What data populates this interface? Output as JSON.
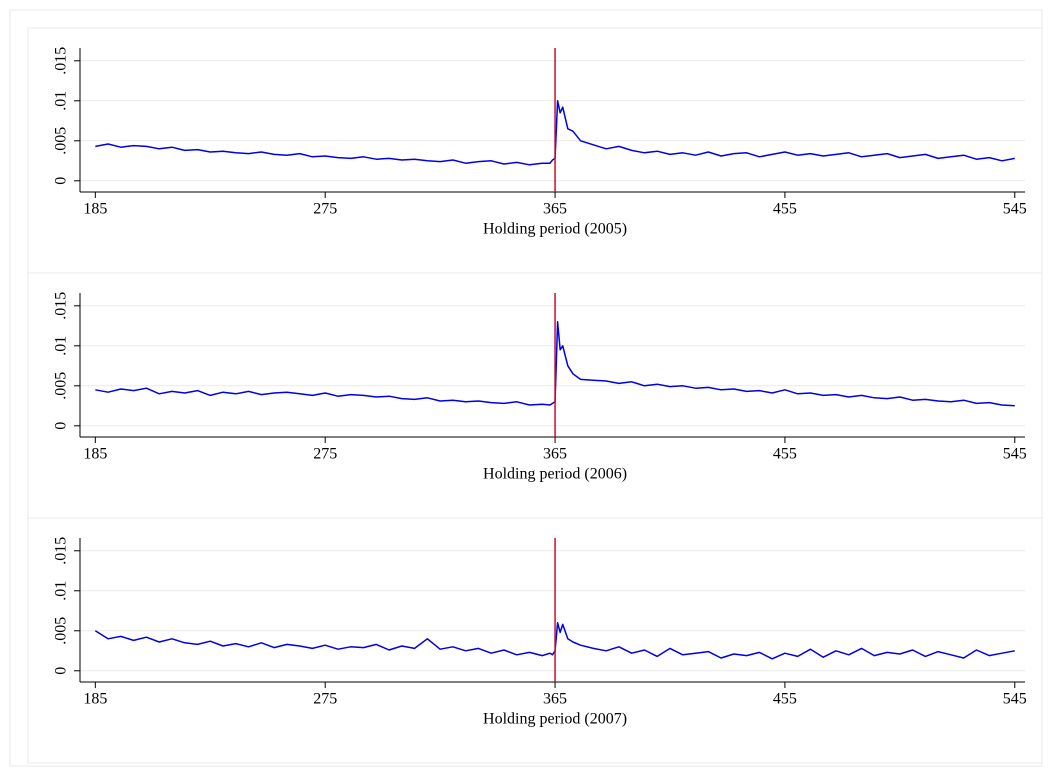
{
  "chart_data": [
    {
      "type": "line",
      "x_label": "Holding period (2005)",
      "color": "#0000e6",
      "vline": 365,
      "vline_color": "#c8102e",
      "grid": true,
      "xlim": [
        179,
        549
      ],
      "xticks": [
        185,
        275,
        365,
        455,
        545
      ],
      "ylim": [
        -0.0014,
        0.0166
      ],
      "yticks": [
        {
          "value": 0,
          "label": "0"
        },
        {
          "value": 0.005,
          "label": ".005"
        },
        {
          "value": 0.01,
          "label": ".01"
        },
        {
          "value": 0.015,
          "label": ".015"
        }
      ],
      "x": [
        185,
        190,
        195,
        200,
        205,
        210,
        215,
        220,
        225,
        230,
        235,
        240,
        245,
        250,
        255,
        260,
        265,
        270,
        275,
        280,
        285,
        290,
        295,
        300,
        305,
        310,
        315,
        320,
        325,
        330,
        335,
        340,
        345,
        350,
        355,
        360,
        363,
        364,
        365,
        366,
        367,
        368,
        370,
        372,
        375,
        380,
        385,
        390,
        395,
        400,
        405,
        410,
        415,
        420,
        425,
        430,
        435,
        440,
        445,
        450,
        455,
        460,
        465,
        470,
        475,
        480,
        485,
        490,
        495,
        500,
        505,
        510,
        515,
        520,
        525,
        530,
        535,
        540,
        545
      ],
      "values": [
        0.0043,
        0.0046,
        0.0042,
        0.0044,
        0.0043,
        0.004,
        0.0042,
        0.0038,
        0.0039,
        0.0036,
        0.0037,
        0.0035,
        0.0034,
        0.0036,
        0.0033,
        0.0032,
        0.0034,
        0.003,
        0.0031,
        0.0029,
        0.0028,
        0.003,
        0.0027,
        0.0028,
        0.0026,
        0.0027,
        0.0025,
        0.0024,
        0.0026,
        0.0022,
        0.0024,
        0.0025,
        0.0021,
        0.0023,
        0.002,
        0.0022,
        0.0022,
        0.0026,
        0.0028,
        0.01,
        0.0085,
        0.0092,
        0.0065,
        0.0062,
        0.005,
        0.0045,
        0.004,
        0.0043,
        0.0038,
        0.0035,
        0.0037,
        0.0033,
        0.0035,
        0.0032,
        0.0036,
        0.0031,
        0.0034,
        0.0035,
        0.003,
        0.0033,
        0.0036,
        0.0032,
        0.0034,
        0.0031,
        0.0033,
        0.0035,
        0.003,
        0.0032,
        0.0034,
        0.0029,
        0.0031,
        0.0033,
        0.0028,
        0.003,
        0.0032,
        0.0027,
        0.0029,
        0.0025,
        0.0028
      ]
    },
    {
      "type": "line",
      "x_label": "Holding period (2006)",
      "color": "#0000e6",
      "vline": 365,
      "vline_color": "#c8102e",
      "grid": true,
      "xlim": [
        179,
        549
      ],
      "xticks": [
        185,
        275,
        365,
        455,
        545
      ],
      "ylim": [
        -0.0014,
        0.0166
      ],
      "yticks": [
        {
          "value": 0,
          "label": "0"
        },
        {
          "value": 0.005,
          "label": ".005"
        },
        {
          "value": 0.01,
          "label": ".01"
        },
        {
          "value": 0.015,
          "label": ".015"
        }
      ],
      "x": [
        185,
        190,
        195,
        200,
        205,
        210,
        215,
        220,
        225,
        230,
        235,
        240,
        245,
        250,
        255,
        260,
        265,
        270,
        275,
        280,
        285,
        290,
        295,
        300,
        305,
        310,
        315,
        320,
        325,
        330,
        335,
        340,
        345,
        350,
        355,
        360,
        363,
        364,
        365,
        366,
        367,
        368,
        370,
        372,
        375,
        380,
        385,
        390,
        395,
        400,
        405,
        410,
        415,
        420,
        425,
        430,
        435,
        440,
        445,
        450,
        455,
        460,
        465,
        470,
        475,
        480,
        485,
        490,
        495,
        500,
        505,
        510,
        515,
        520,
        525,
        530,
        535,
        540,
        545
      ],
      "values": [
        0.0045,
        0.0042,
        0.0046,
        0.0044,
        0.0047,
        0.004,
        0.0043,
        0.0041,
        0.0044,
        0.0038,
        0.0042,
        0.004,
        0.0043,
        0.0039,
        0.0041,
        0.0042,
        0.004,
        0.0038,
        0.0041,
        0.0037,
        0.0039,
        0.0038,
        0.0036,
        0.0037,
        0.0034,
        0.0033,
        0.0035,
        0.0031,
        0.0032,
        0.003,
        0.0031,
        0.0029,
        0.0028,
        0.003,
        0.0026,
        0.0027,
        0.0026,
        0.0028,
        0.003,
        0.013,
        0.0095,
        0.01,
        0.0075,
        0.0065,
        0.0058,
        0.0057,
        0.0056,
        0.0053,
        0.0055,
        0.005,
        0.0052,
        0.0049,
        0.005,
        0.0047,
        0.0048,
        0.0045,
        0.0046,
        0.0043,
        0.0044,
        0.0041,
        0.0045,
        0.004,
        0.0041,
        0.0038,
        0.0039,
        0.0036,
        0.0038,
        0.0035,
        0.0034,
        0.0036,
        0.0032,
        0.0033,
        0.0031,
        0.003,
        0.0032,
        0.0028,
        0.0029,
        0.0026,
        0.0025
      ]
    },
    {
      "type": "line",
      "x_label": "Holding period (2007)",
      "color": "#0000e6",
      "vline": 365,
      "vline_color": "#c8102e",
      "grid": true,
      "xlim": [
        179,
        549
      ],
      "xticks": [
        185,
        275,
        365,
        455,
        545
      ],
      "ylim": [
        -0.0014,
        0.0166
      ],
      "yticks": [
        {
          "value": 0,
          "label": "0"
        },
        {
          "value": 0.005,
          "label": ".005"
        },
        {
          "value": 0.01,
          "label": ".01"
        },
        {
          "value": 0.015,
          "label": ".015"
        }
      ],
      "x": [
        185,
        190,
        195,
        200,
        205,
        210,
        215,
        220,
        225,
        230,
        235,
        240,
        245,
        250,
        255,
        260,
        265,
        270,
        275,
        280,
        285,
        290,
        295,
        300,
        305,
        310,
        315,
        320,
        325,
        330,
        335,
        340,
        345,
        350,
        355,
        360,
        363,
        364,
        365,
        366,
        367,
        368,
        370,
        372,
        375,
        380,
        385,
        390,
        395,
        400,
        405,
        410,
        415,
        420,
        425,
        430,
        435,
        440,
        445,
        450,
        455,
        460,
        465,
        470,
        475,
        480,
        485,
        490,
        495,
        500,
        505,
        510,
        515,
        520,
        525,
        530,
        535,
        540,
        545
      ],
      "values": [
        0.005,
        0.004,
        0.0043,
        0.0038,
        0.0042,
        0.0036,
        0.004,
        0.0035,
        0.0033,
        0.0037,
        0.0031,
        0.0034,
        0.003,
        0.0035,
        0.0029,
        0.0033,
        0.0031,
        0.0028,
        0.0032,
        0.0027,
        0.003,
        0.0029,
        0.0033,
        0.0026,
        0.0031,
        0.0028,
        0.004,
        0.0027,
        0.003,
        0.0025,
        0.0028,
        0.0022,
        0.0026,
        0.002,
        0.0023,
        0.0019,
        0.0022,
        0.002,
        0.0025,
        0.006,
        0.0048,
        0.0058,
        0.004,
        0.0036,
        0.0032,
        0.0028,
        0.0025,
        0.003,
        0.0022,
        0.0026,
        0.0018,
        0.0028,
        0.002,
        0.0022,
        0.0024,
        0.0016,
        0.0021,
        0.0019,
        0.0023,
        0.0015,
        0.0022,
        0.0018,
        0.0027,
        0.0017,
        0.0025,
        0.002,
        0.0028,
        0.0019,
        0.0023,
        0.0021,
        0.0026,
        0.0018,
        0.0024,
        0.002,
        0.0016,
        0.0026,
        0.0019,
        0.0022,
        0.0025
      ]
    }
  ]
}
